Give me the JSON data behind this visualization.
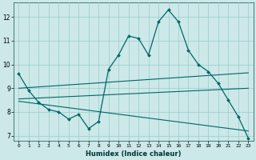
{
  "xlabel": "Humidex (Indice chaleur)",
  "background_color": "#cce8e8",
  "grid_color": "#99cccc",
  "line_color": "#006666",
  "xlim": [
    -0.5,
    23.5
  ],
  "ylim": [
    6.8,
    12.6
  ],
  "yticks": [
    7,
    8,
    9,
    10,
    11,
    12
  ],
  "xticks": [
    0,
    1,
    2,
    3,
    4,
    5,
    6,
    7,
    8,
    9,
    10,
    11,
    12,
    13,
    14,
    15,
    16,
    17,
    18,
    19,
    20,
    21,
    22,
    23
  ],
  "series1": [
    9.6,
    8.9,
    8.4,
    8.1,
    8.0,
    7.7,
    7.9,
    7.3,
    7.6,
    9.8,
    10.4,
    11.2,
    11.1,
    10.4,
    11.8,
    12.3,
    11.8,
    10.6,
    10.0,
    9.7,
    9.2,
    8.5,
    7.8,
    6.9
  ],
  "series2_x": [
    0,
    23
  ],
  "series2_y": [
    9.0,
    9.65
  ],
  "series3_x": [
    0,
    23
  ],
  "series3_y": [
    8.55,
    9.0
  ],
  "series4_x": [
    0,
    23
  ],
  "series4_y": [
    8.45,
    7.2
  ]
}
